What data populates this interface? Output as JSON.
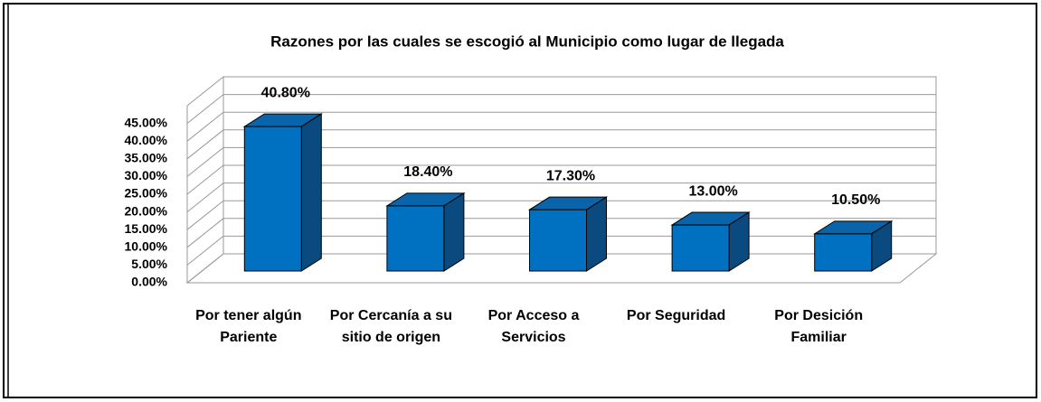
{
  "chart_data": {
    "type": "bar3d",
    "title": "Razones por las cuales se escogió al Municipio como lugar de llegada",
    "categories": [
      "Por tener algún Pariente",
      "Por Cercanía a su sitio de origen",
      "Por Acceso a Servicios",
      "Por Seguridad",
      "Por Desición Familiar"
    ],
    "values": [
      40.8,
      18.4,
      17.3,
      13.0,
      10.5
    ],
    "value_labels": [
      "40.80%",
      "18.40%",
      "17.30%",
      "13.00%",
      "10.50%"
    ],
    "color": "#0070c0",
    "ylim": [
      0,
      50
    ],
    "yticks": [
      {
        "value": 0,
        "label": "0.00%"
      },
      {
        "value": 5,
        "label": "5.00%"
      },
      {
        "value": 10,
        "label": "10.00%"
      },
      {
        "value": 15,
        "label": "15.00%"
      },
      {
        "value": 20,
        "label": "20.00%"
      },
      {
        "value": 25,
        "label": "25.00%"
      },
      {
        "value": 30,
        "label": "30.00%"
      },
      {
        "value": 35,
        "label": "35.00%"
      },
      {
        "value": 40,
        "label": "40.00%"
      },
      {
        "value": 45,
        "label": "45.00%"
      }
    ],
    "grid": true
  }
}
